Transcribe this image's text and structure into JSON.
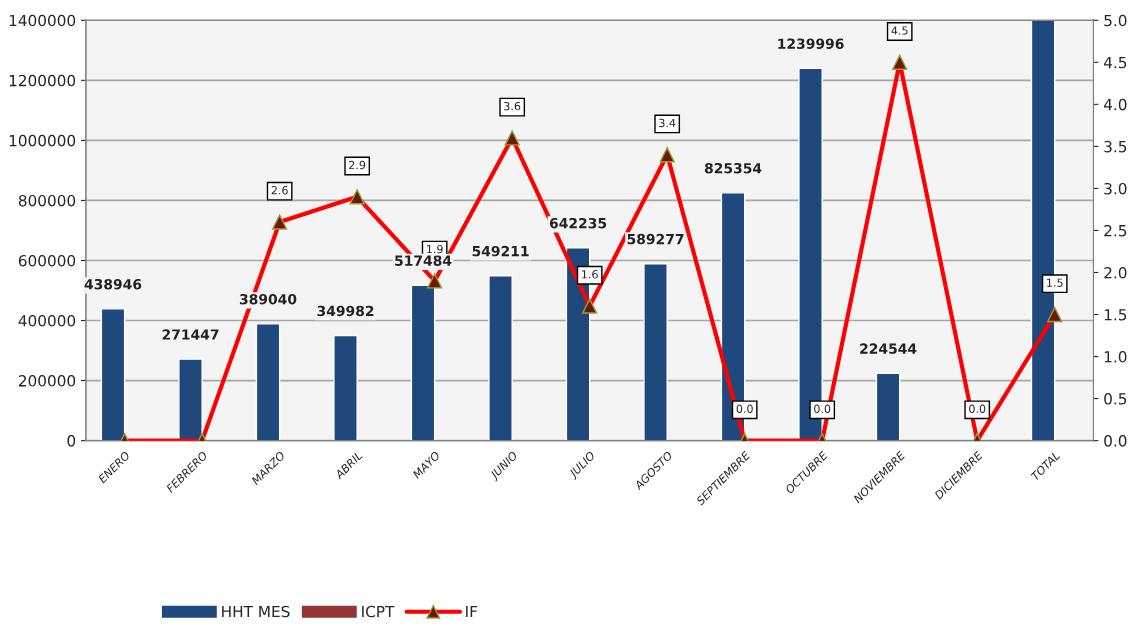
{
  "chart_data": {
    "type": "bar",
    "categories": [
      "ENERO",
      "FEBRERO",
      "MARZO",
      "ABRIL",
      "MAYO",
      "JUNIO",
      "JULIO",
      "AGOSTO",
      "SEPTIEMBRE",
      "OCTUBRE",
      "NOVIEMBRE",
      "DICIEMBRE",
      "TOTAL"
    ],
    "series": [
      {
        "name": "HHT MES",
        "color": "#1f497d",
        "values": [
          438946,
          271447,
          389040,
          349982,
          517484,
          549211,
          642235,
          589277,
          825354,
          1239996,
          224544,
          null,
          1400000
        ],
        "value_labels": [
          "438946",
          "271447",
          "389040",
          "349982",
          "517484",
          "549211",
          "642235",
          "589277",
          "825354",
          "1239996",
          "224544",
          null,
          null
        ]
      },
      {
        "name": "ICPT",
        "color": "#943634",
        "values": [
          null,
          null,
          null,
          null,
          null,
          null,
          null,
          null,
          null,
          null,
          null,
          null,
          null
        ]
      },
      {
        "name": "IF",
        "type": "line",
        "axis": "y2",
        "color": "#ff0000",
        "marker": "triangle",
        "values": [
          0,
          0,
          2.6,
          2.9,
          1.9,
          3.6,
          1.6,
          3.4,
          0,
          0,
          4.5,
          0,
          1.5
        ],
        "value_labels": [
          null,
          null,
          "2.6",
          "2.9",
          "1.9",
          "3.6",
          "1.6",
          "3.4",
          "0.0",
          "0.0",
          "4.5",
          "0.0",
          "1.5"
        ]
      }
    ],
    "ylim": [
      0,
      1400000
    ],
    "yticks": [
      0,
      200000,
      400000,
      600000,
      800000,
      1000000,
      1200000,
      1400000
    ],
    "y2lim": [
      0,
      5
    ],
    "y2ticks": [
      {
        "value": 0,
        "label": "0.0"
      },
      {
        "value": 0.5,
        "label": "0.5"
      },
      {
        "value": 1,
        "label": "1.0"
      },
      {
        "value": 1.5,
        "label": "1.5"
      },
      {
        "value": 2,
        "label": "2.0"
      },
      {
        "value": 2.5,
        "label": "2.5"
      },
      {
        "value": 3,
        "label": "3.0"
      },
      {
        "value": 3.5,
        "label": "3.5"
      },
      {
        "value": 4,
        "label": "4.0"
      },
      {
        "value": 4.5,
        "label": "4.5"
      },
      {
        "value": 5,
        "label": "5.0"
      }
    ],
    "grid": "y",
    "legend": "bottom"
  }
}
